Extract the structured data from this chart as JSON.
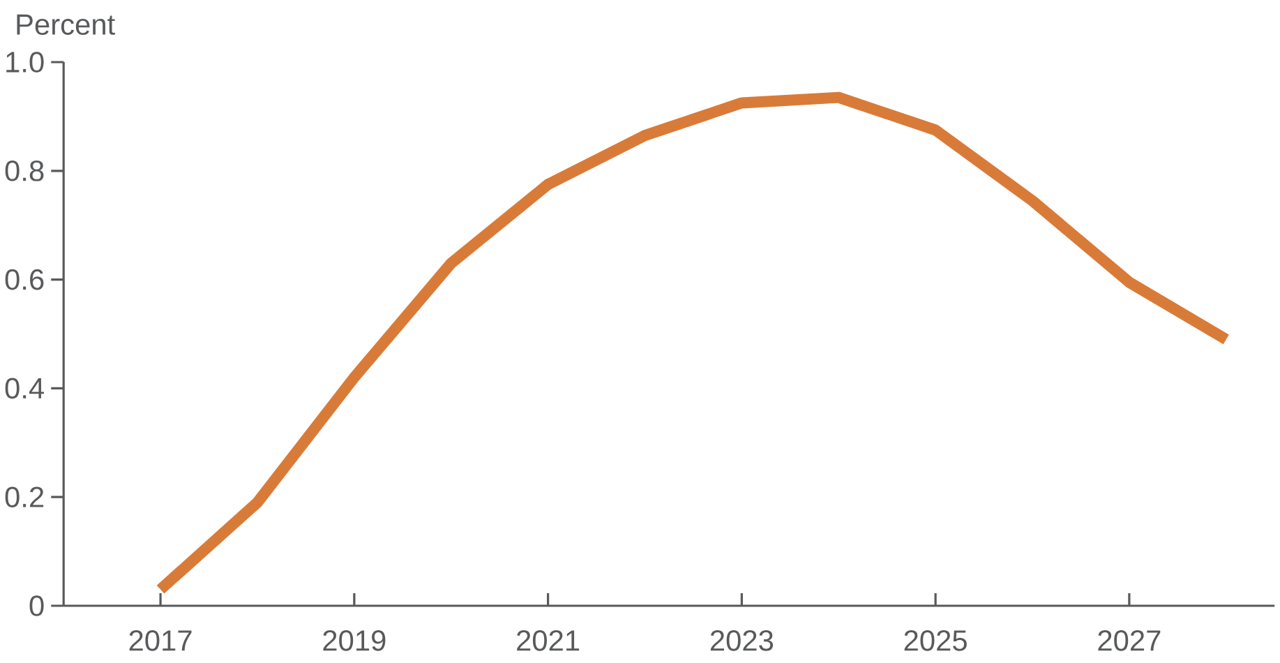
{
  "chart_data": {
    "type": "line",
    "ylabel": "Percent",
    "x": [
      2017,
      2018,
      2019,
      2020,
      2021,
      2022,
      2023,
      2024,
      2025,
      2026,
      2027,
      2028
    ],
    "series": [
      {
        "color": "#d97b38",
        "values": [
          0.03,
          0.19,
          0.42,
          0.63,
          0.775,
          0.865,
          0.925,
          0.935,
          0.875,
          0.745,
          0.595,
          0.49
        ]
      }
    ],
    "xlim": [
      2016,
      2028.5
    ],
    "ylim": [
      0,
      1
    ],
    "xticks": [
      2017,
      2019,
      2021,
      2023,
      2025,
      2027
    ],
    "yticks": [
      0,
      0.2,
      0.4,
      0.6,
      0.8,
      {
        "value": 1,
        "label": "1.0"
      }
    ],
    "grid": false,
    "line_style": "solid"
  }
}
